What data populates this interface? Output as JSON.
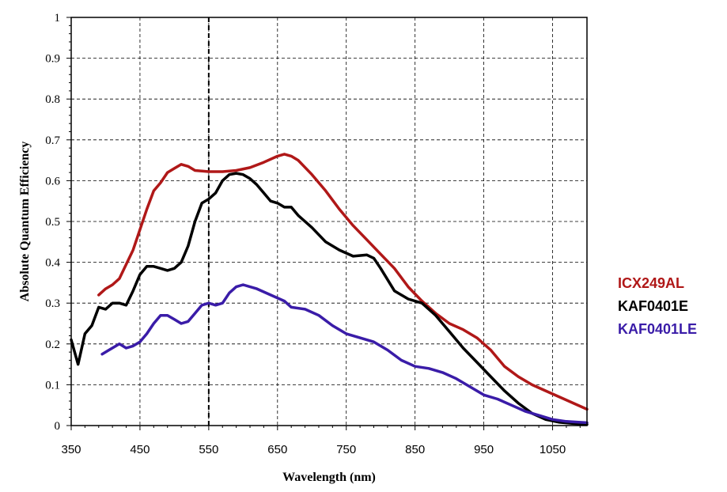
{
  "chart_data": {
    "type": "line",
    "title": "",
    "xlabel": "Wavelength (nm)",
    "ylabel": "Absolute Quantum Efficiency",
    "xlim": [
      350,
      1100
    ],
    "ylim": [
      0,
      1
    ],
    "x_ticks": [
      350,
      450,
      550,
      650,
      750,
      850,
      950,
      1050
    ],
    "x_tick_labels": [
      "350",
      "450",
      "550",
      "650",
      "750",
      "850",
      "950",
      "1050"
    ],
    "y_ticks": [
      0,
      0.1,
      0.2,
      0.3,
      0.4,
      0.5,
      0.6,
      0.7,
      0.8,
      0.9,
      1
    ],
    "y_tick_labels": [
      "0",
      "0.1",
      "0.2",
      "0.3",
      "0.4",
      "0.5",
      "0.6",
      "0.7",
      "0.8",
      "0.9",
      "1"
    ],
    "grid": true,
    "legend_position": "right",
    "series": [
      {
        "name": "ICX249AL",
        "color": "#b01818",
        "points": [
          [
            390,
            0.32
          ],
          [
            400,
            0.335
          ],
          [
            410,
            0.345
          ],
          [
            420,
            0.36
          ],
          [
            430,
            0.395
          ],
          [
            440,
            0.43
          ],
          [
            450,
            0.48
          ],
          [
            460,
            0.53
          ],
          [
            470,
            0.575
          ],
          [
            480,
            0.595
          ],
          [
            490,
            0.62
          ],
          [
            500,
            0.63
          ],
          [
            510,
            0.64
          ],
          [
            520,
            0.635
          ],
          [
            530,
            0.625
          ],
          [
            550,
            0.622
          ],
          [
            570,
            0.622
          ],
          [
            590,
            0.625
          ],
          [
            610,
            0.632
          ],
          [
            630,
            0.645
          ],
          [
            650,
            0.66
          ],
          [
            660,
            0.665
          ],
          [
            670,
            0.66
          ],
          [
            680,
            0.65
          ],
          [
            700,
            0.615
          ],
          [
            720,
            0.575
          ],
          [
            740,
            0.53
          ],
          [
            760,
            0.49
          ],
          [
            780,
            0.455
          ],
          [
            800,
            0.42
          ],
          [
            820,
            0.385
          ],
          [
            840,
            0.34
          ],
          [
            860,
            0.305
          ],
          [
            880,
            0.275
          ],
          [
            900,
            0.25
          ],
          [
            920,
            0.235
          ],
          [
            940,
            0.215
          ],
          [
            960,
            0.185
          ],
          [
            980,
            0.145
          ],
          [
            1000,
            0.12
          ],
          [
            1020,
            0.1
          ],
          [
            1040,
            0.085
          ],
          [
            1060,
            0.07
          ],
          [
            1080,
            0.055
          ],
          [
            1100,
            0.04
          ]
        ]
      },
      {
        "name": "KAF0401E",
        "color": "#000000",
        "points": [
          [
            350,
            0.21
          ],
          [
            360,
            0.15
          ],
          [
            370,
            0.225
          ],
          [
            380,
            0.245
          ],
          [
            390,
            0.29
          ],
          [
            400,
            0.285
          ],
          [
            410,
            0.3
          ],
          [
            420,
            0.3
          ],
          [
            430,
            0.295
          ],
          [
            440,
            0.33
          ],
          [
            450,
            0.37
          ],
          [
            460,
            0.39
          ],
          [
            470,
            0.39
          ],
          [
            480,
            0.385
          ],
          [
            490,
            0.38
          ],
          [
            500,
            0.385
          ],
          [
            510,
            0.4
          ],
          [
            520,
            0.44
          ],
          [
            530,
            0.5
          ],
          [
            540,
            0.545
          ],
          [
            550,
            0.555
          ],
          [
            560,
            0.57
          ],
          [
            570,
            0.6
          ],
          [
            580,
            0.615
          ],
          [
            590,
            0.618
          ],
          [
            600,
            0.615
          ],
          [
            610,
            0.605
          ],
          [
            620,
            0.59
          ],
          [
            630,
            0.57
          ],
          [
            640,
            0.55
          ],
          [
            650,
            0.545
          ],
          [
            660,
            0.535
          ],
          [
            670,
            0.535
          ],
          [
            680,
            0.515
          ],
          [
            700,
            0.485
          ],
          [
            720,
            0.45
          ],
          [
            740,
            0.43
          ],
          [
            760,
            0.415
          ],
          [
            780,
            0.418
          ],
          [
            790,
            0.41
          ],
          [
            800,
            0.385
          ],
          [
            820,
            0.33
          ],
          [
            840,
            0.31
          ],
          [
            860,
            0.3
          ],
          [
            880,
            0.27
          ],
          [
            900,
            0.23
          ],
          [
            920,
            0.19
          ],
          [
            940,
            0.155
          ],
          [
            960,
            0.12
          ],
          [
            980,
            0.085
          ],
          [
            1000,
            0.055
          ],
          [
            1020,
            0.03
          ],
          [
            1040,
            0.015
          ],
          [
            1060,
            0.008
          ],
          [
            1080,
            0.005
          ],
          [
            1100,
            0.003
          ]
        ]
      },
      {
        "name": "KAF0401LE",
        "color": "#3a1ca8",
        "points": [
          [
            395,
            0.175
          ],
          [
            405,
            0.185
          ],
          [
            415,
            0.195
          ],
          [
            420,
            0.2
          ],
          [
            430,
            0.19
          ],
          [
            440,
            0.195
          ],
          [
            450,
            0.205
          ],
          [
            460,
            0.225
          ],
          [
            470,
            0.25
          ],
          [
            480,
            0.27
          ],
          [
            490,
            0.27
          ],
          [
            500,
            0.26
          ],
          [
            510,
            0.25
          ],
          [
            520,
            0.255
          ],
          [
            530,
            0.275
          ],
          [
            540,
            0.295
          ],
          [
            550,
            0.3
          ],
          [
            560,
            0.295
          ],
          [
            570,
            0.3
          ],
          [
            580,
            0.325
          ],
          [
            590,
            0.34
          ],
          [
            600,
            0.345
          ],
          [
            620,
            0.335
          ],
          [
            640,
            0.32
          ],
          [
            660,
            0.305
          ],
          [
            670,
            0.29
          ],
          [
            690,
            0.285
          ],
          [
            710,
            0.27
          ],
          [
            730,
            0.245
          ],
          [
            750,
            0.225
          ],
          [
            770,
            0.215
          ],
          [
            790,
            0.205
          ],
          [
            810,
            0.185
          ],
          [
            830,
            0.16
          ],
          [
            850,
            0.145
          ],
          [
            870,
            0.14
          ],
          [
            890,
            0.13
          ],
          [
            910,
            0.115
          ],
          [
            930,
            0.095
          ],
          [
            950,
            0.075
          ],
          [
            970,
            0.065
          ],
          [
            990,
            0.05
          ],
          [
            1010,
            0.035
          ],
          [
            1030,
            0.025
          ],
          [
            1050,
            0.015
          ],
          [
            1070,
            0.01
          ],
          [
            1090,
            0.008
          ],
          [
            1100,
            0.007
          ]
        ]
      }
    ]
  }
}
